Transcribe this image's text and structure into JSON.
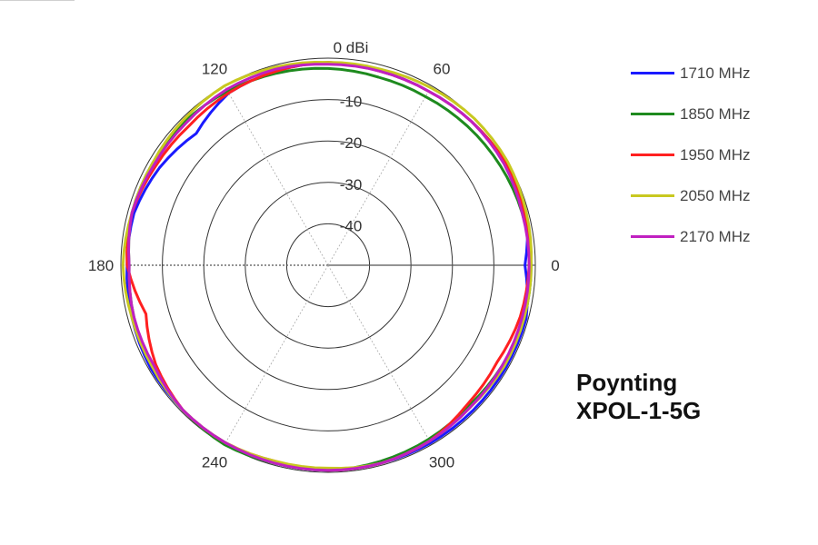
{
  "chart_data": {
    "type": "polar",
    "radial_labels": [
      "0 dBi",
      "-10",
      "-20",
      "-30",
      "-40"
    ],
    "radial_values": [
      0,
      -10,
      -20,
      -30,
      -40
    ],
    "r_range": [
      -50,
      0
    ],
    "angle_labels": [
      {
        "deg": 0,
        "label": "0"
      },
      {
        "deg": 60,
        "label": "60"
      },
      {
        "deg": 120,
        "label": "120"
      },
      {
        "deg": 180,
        "label": "180"
      },
      {
        "deg": 240,
        "label": "240"
      },
      {
        "deg": 300,
        "label": "300"
      }
    ],
    "angles_deg": [
      0,
      15,
      30,
      45,
      60,
      75,
      90,
      105,
      120,
      135,
      150,
      165,
      180,
      195,
      210,
      225,
      240,
      255,
      270,
      285,
      300,
      315,
      330,
      345
    ],
    "series": [
      {
        "name": "1710 MHz",
        "color": "#1a1aff",
        "values": [
          -2.5,
          -0.5,
          -0.5,
          -1,
          -1.5,
          -1.5,
          -1,
          -1.5,
          -2,
          -5,
          -3,
          -1.5,
          -1.5,
          -1,
          -0.5,
          -0.5,
          -0.5,
          -0.5,
          -0.5,
          -0.5,
          -0.5,
          -0.5,
          -0.5,
          -0.5
        ]
      },
      {
        "name": "1850 MHz",
        "color": "#1e8a1e",
        "values": [
          -1,
          -1.5,
          -2,
          -2.5,
          -3,
          -3,
          -2.5,
          -2,
          -1.5,
          -1,
          -1,
          -1,
          -2,
          -1.5,
          -1,
          -0.5,
          0,
          -0.5,
          -0.5,
          -1,
          -1.5,
          -2,
          -1.5,
          -1
        ]
      },
      {
        "name": "1950 MHz",
        "color": "#ff2020",
        "values": [
          -1.5,
          -1,
          -0.5,
          -1,
          -1.5,
          -1.5,
          -1,
          -1.5,
          -2,
          -2.5,
          -2,
          -1,
          -1.5,
          -4.5,
          -2,
          -0.5,
          -0.5,
          -1,
          -0.5,
          -0.5,
          -1,
          -2.5,
          -3,
          -2
        ]
      },
      {
        "name": "2050 MHz",
        "color": "#c8c820",
        "values": [
          -1,
          -0.5,
          0,
          0,
          -0.5,
          -1,
          -1,
          -0.5,
          0,
          -0.5,
          -1,
          -1,
          -0.5,
          -1,
          -1,
          -0.5,
          -0.5,
          -1,
          -1,
          -0.5,
          -1,
          -1.5,
          -1,
          -1
        ]
      },
      {
        "name": "2170 MHz",
        "color": "#c020c0",
        "values": [
          -1.5,
          -1.5,
          -1,
          -1,
          -1.5,
          -1.5,
          -1.5,
          -1,
          -1,
          -1.5,
          -1.5,
          -1,
          -2,
          -1.5,
          -1.5,
          -0.5,
          -0.5,
          -0.5,
          -0.5,
          -0.5,
          -1,
          -1.5,
          -1.5,
          -1.5
        ]
      }
    ],
    "grid": true,
    "legend_position": "top-right"
  },
  "caption": {
    "line1": "Poynting",
    "line2": "XPOL-1-5G"
  }
}
